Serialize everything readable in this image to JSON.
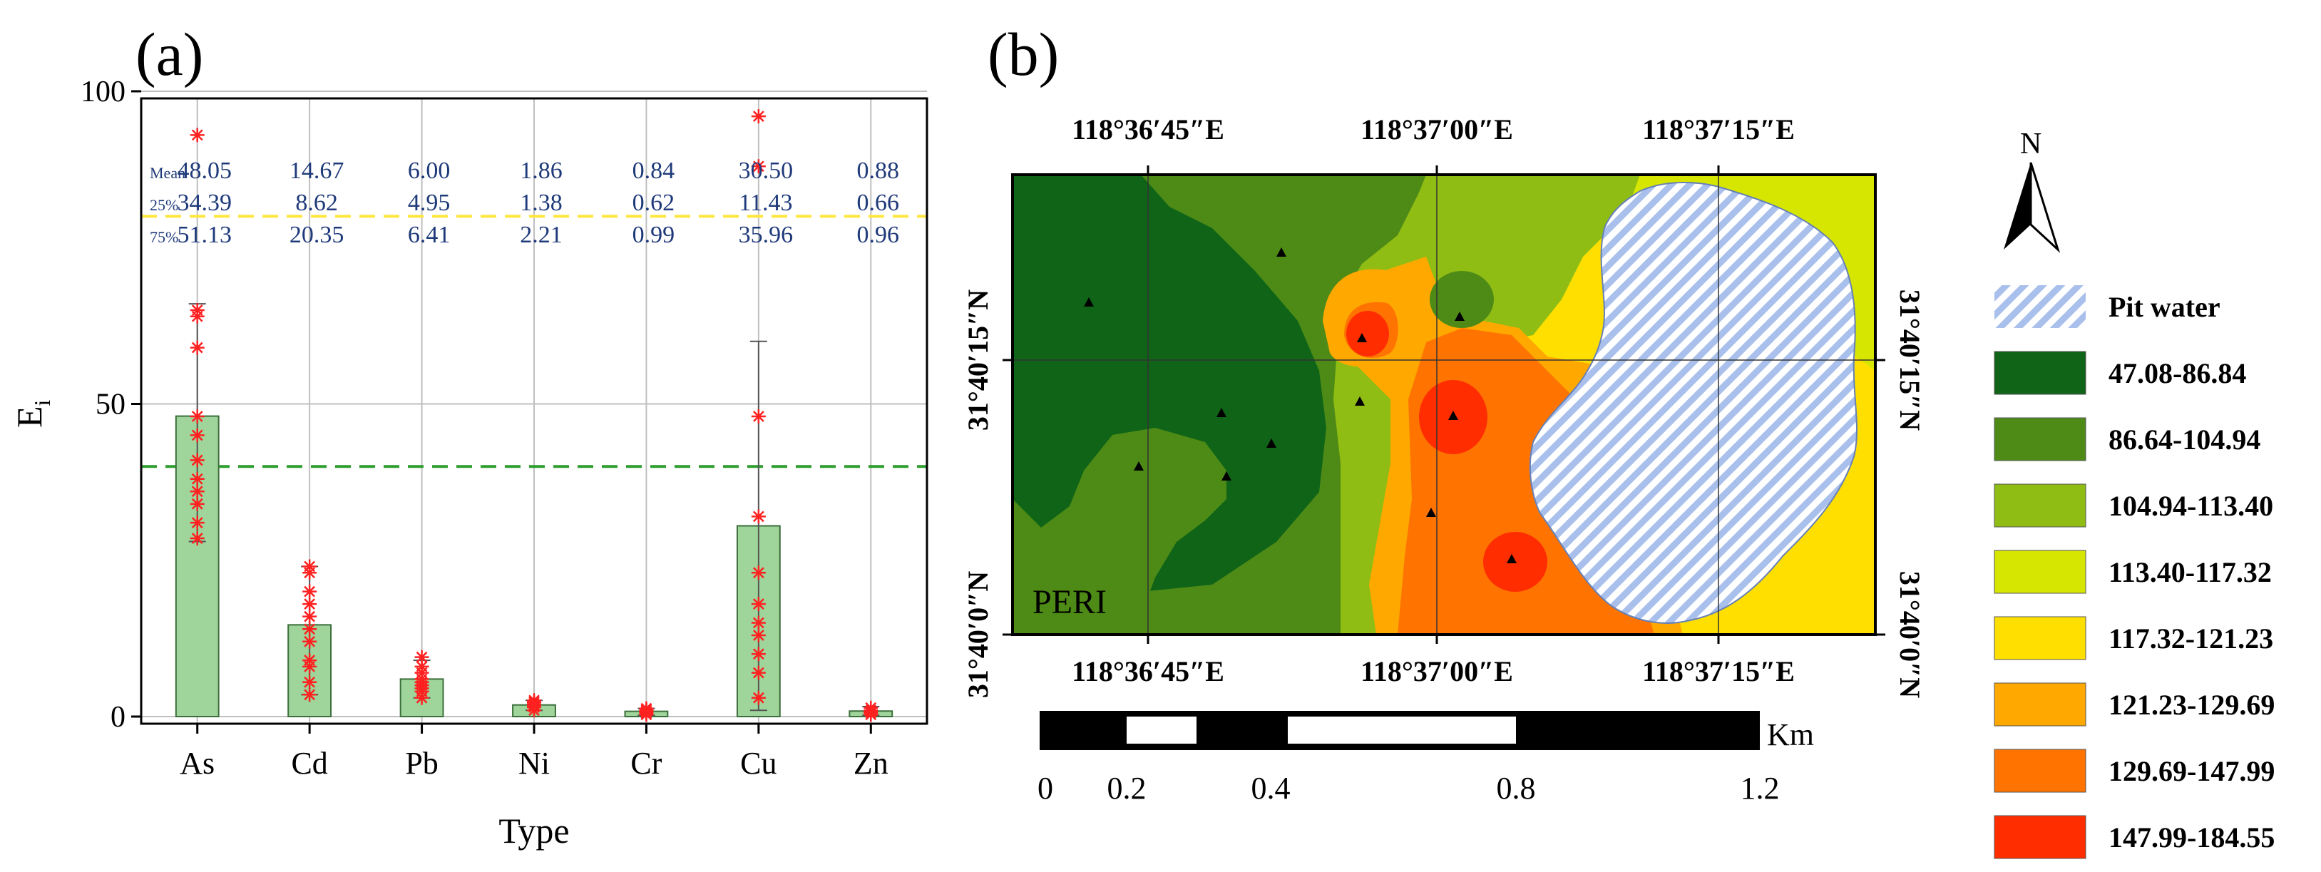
{
  "panel_a": {
    "label": "(a)",
    "chart_data": {
      "type": "bar",
      "title": "",
      "xlabel": "Type",
      "ylabel": "E",
      "ylabel_sub": "i",
      "categories": [
        "As",
        "Cd",
        "Pb",
        "Ni",
        "Cr",
        "Cu",
        "Zn"
      ],
      "values": [
        48.05,
        14.67,
        6.0,
        1.86,
        0.84,
        30.5,
        0.88
      ],
      "ylim": [
        0,
        100
      ],
      "yticks": [
        "0",
        "50",
        "100"
      ],
      "error_high": [
        66,
        24,
        9,
        2.6,
        1.3,
        60,
        1.6
      ],
      "error_low": [
        28,
        3.5,
        3,
        1,
        0.2,
        1,
        0.2
      ],
      "points": [
        [
          28.5,
          31,
          34,
          36,
          38,
          41,
          45,
          48,
          59,
          64,
          65,
          93
        ],
        [
          3.5,
          5.5,
          8,
          9,
          12,
          14,
          16,
          18,
          20,
          23,
          24
        ],
        [
          3,
          4,
          4.5,
          5,
          5.5,
          6,
          7,
          8,
          9.5
        ],
        [
          1,
          1.5,
          1.8,
          2,
          2.3,
          2.6
        ],
        [
          0.3,
          0.5,
          0.7,
          0.9,
          1.1,
          1.3
        ],
        [
          3,
          7,
          10,
          13,
          15,
          18,
          23,
          32,
          48,
          88,
          96
        ],
        [
          0.3,
          0.6,
          0.8,
          1.0,
          1.4
        ]
      ],
      "reference_lines": [
        {
          "value": 80,
          "color": "#ffe63c",
          "style": "dashed"
        },
        {
          "value": 40,
          "color": "#2e9e2e",
          "style": "dashed"
        }
      ],
      "stats_rows": [
        {
          "label": "Mean",
          "values": [
            "48.05",
            "14.67",
            "6.00",
            "1.86",
            "0.84",
            "30.50",
            "0.88"
          ]
        },
        {
          "label": "25%",
          "values": [
            "34.39",
            "8.62",
            "4.95",
            "1.38",
            "0.62",
            "11.43",
            "0.66"
          ]
        },
        {
          "label": "75%",
          "values": [
            "51.13",
            "20.35",
            "6.41",
            "2.21",
            "0.99",
            "35.96",
            "0.96"
          ]
        }
      ],
      "colors": {
        "bar": "#9fd49a",
        "bar_edge": "#3c6e3c",
        "points": "#ff2020"
      }
    }
  },
  "panel_b": {
    "label": "(b)",
    "map_label": "PERI",
    "top_lon": [
      "118°36′45″E",
      "118°37′00″E",
      "118°37′15″E"
    ],
    "bottom_lon": [
      "118°36′45″E",
      "118°37′00″E",
      "118°37′15″E"
    ],
    "left_lat": [
      "31°40′15″N",
      "31°40′0″N"
    ],
    "right_lat": [
      "31°40′15″N",
      "31°40′0″N"
    ],
    "north": "N",
    "scale": {
      "unit": "Km",
      "labels": [
        "0",
        "0.2",
        "0.4",
        "0.8",
        "1.2"
      ]
    },
    "legend": [
      {
        "label": "Pit water",
        "color": "#a9c0ec",
        "hatch": true
      },
      {
        "label": "47.08-86.84",
        "color": "#0f6417"
      },
      {
        "label": "86.64-104.94",
        "color": "#4e8b16"
      },
      {
        "label": "104.94-113.40",
        "color": "#90bd14"
      },
      {
        "label": "113.40-117.32",
        "color": "#d7e600"
      },
      {
        "label": "117.32-121.23",
        "color": "#ffdf00"
      },
      {
        "label": "121.23-129.69",
        "color": "#ffa800"
      },
      {
        "label": "129.69-147.99",
        "color": "#ff7400"
      },
      {
        "label": "147.99-184.55",
        "color": "#ff2d00"
      }
    ]
  }
}
